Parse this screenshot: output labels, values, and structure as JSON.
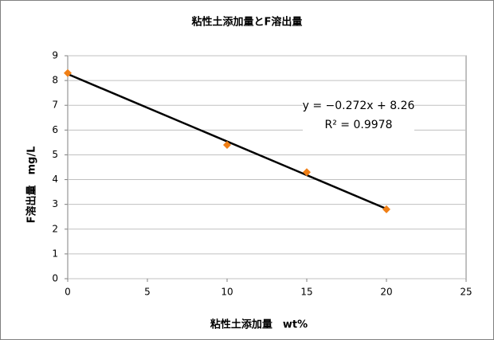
{
  "chart_data": {
    "type": "scatter",
    "title": "粘性土添加量とF溶出量",
    "x_label": "粘性土添加量　wt%",
    "y_label": "F溶出量　mg/L",
    "series": [
      {
        "x": [
          0,
          10,
          15,
          20
        ],
        "values": [
          8.3,
          5.4,
          4.3,
          2.8
        ],
        "color": "#f07f16"
      }
    ],
    "trendline": {
      "x": [
        0,
        20
      ],
      "values": [
        8.26,
        2.82
      ],
      "color": "#000000",
      "equation": "y = −0.272x + 8.26",
      "r_squared": "R² = 0.9978"
    },
    "xlim": [
      0,
      25
    ],
    "xticks": [
      0,
      5,
      10,
      15,
      20,
      25
    ],
    "ylim": [
      0,
      9
    ],
    "yticks": [
      0,
      1,
      2,
      3,
      4,
      5,
      6,
      7,
      8,
      9
    ],
    "grid": true
  }
}
